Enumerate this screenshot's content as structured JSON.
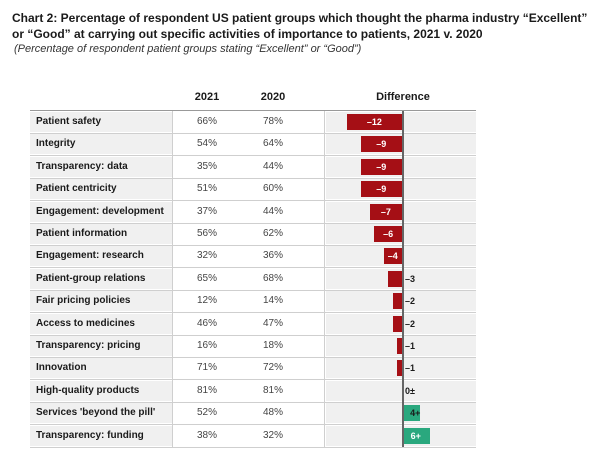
{
  "title": "Chart 2: Percentage of respondent US patient groups which thought the pharma industry “Excellent” or “Good” at carrying out specific activities of importance to patients, 2021 v. 2020",
  "subtitle": "(Percentage of respondent patient groups stating “Excellent” or “Good”)",
  "columns": {
    "y2021": "2021",
    "y2020": "2020",
    "diff": "Difference"
  },
  "colors": {
    "negative": "#a50f15",
    "positive": "#2aa87e"
  },
  "chart_data": {
    "type": "table",
    "title": "Chart 2: Percentage of respondent US patient groups which thought the pharma industry “Excellent” or “Good” at carrying out specific activities of importance to patients, 2021 v. 2020",
    "rows": [
      {
        "label": "Patient safety",
        "v2021": "66%",
        "v2020": "78%",
        "diff": -12,
        "diff_label": "–12"
      },
      {
        "label": "Integrity",
        "v2021": "54%",
        "v2020": "64%",
        "diff": -9,
        "diff_label": "–9"
      },
      {
        "label": "Transparency: data",
        "v2021": "35%",
        "v2020": "44%",
        "diff": -9,
        "diff_label": "–9"
      },
      {
        "label": "Patient centricity",
        "v2021": "51%",
        "v2020": "60%",
        "diff": -9,
        "diff_label": "–9"
      },
      {
        "label": "Engagement: development",
        "v2021": "37%",
        "v2020": "44%",
        "diff": -7,
        "diff_label": "–7"
      },
      {
        "label": "Patient information",
        "v2021": "56%",
        "v2020": "62%",
        "diff": -6,
        "diff_label": "–6"
      },
      {
        "label": "Engagement: research",
        "v2021": "32%",
        "v2020": "36%",
        "diff": -4,
        "diff_label": "–4"
      },
      {
        "label": "Patient-group relations",
        "v2021": "65%",
        "v2020": "68%",
        "diff": -3,
        "diff_label": "–3"
      },
      {
        "label": "Fair pricing policies",
        "v2021": "12%",
        "v2020": "14%",
        "diff": -2,
        "diff_label": "–2"
      },
      {
        "label": "Access to medicines",
        "v2021": "46%",
        "v2020": "47%",
        "diff": -2,
        "diff_label": "–2"
      },
      {
        "label": "Transparency: pricing",
        "v2021": "16%",
        "v2020": "18%",
        "diff": -1,
        "diff_label": "–1"
      },
      {
        "label": "Innovation",
        "v2021": "71%",
        "v2020": "72%",
        "diff": -1,
        "diff_label": "–1"
      },
      {
        "label": "High-quality products",
        "v2021": "81%",
        "v2020": "81%",
        "diff": 0,
        "diff_label": "0±"
      },
      {
        "label": "Services 'beyond the pill'",
        "v2021": "52%",
        "v2020": "48%",
        "diff": 4,
        "diff_label": "4+"
      },
      {
        "label": "Transparency: funding",
        "v2021": "38%",
        "v2020": "32%",
        "diff": 6,
        "diff_label": "6+"
      }
    ]
  }
}
